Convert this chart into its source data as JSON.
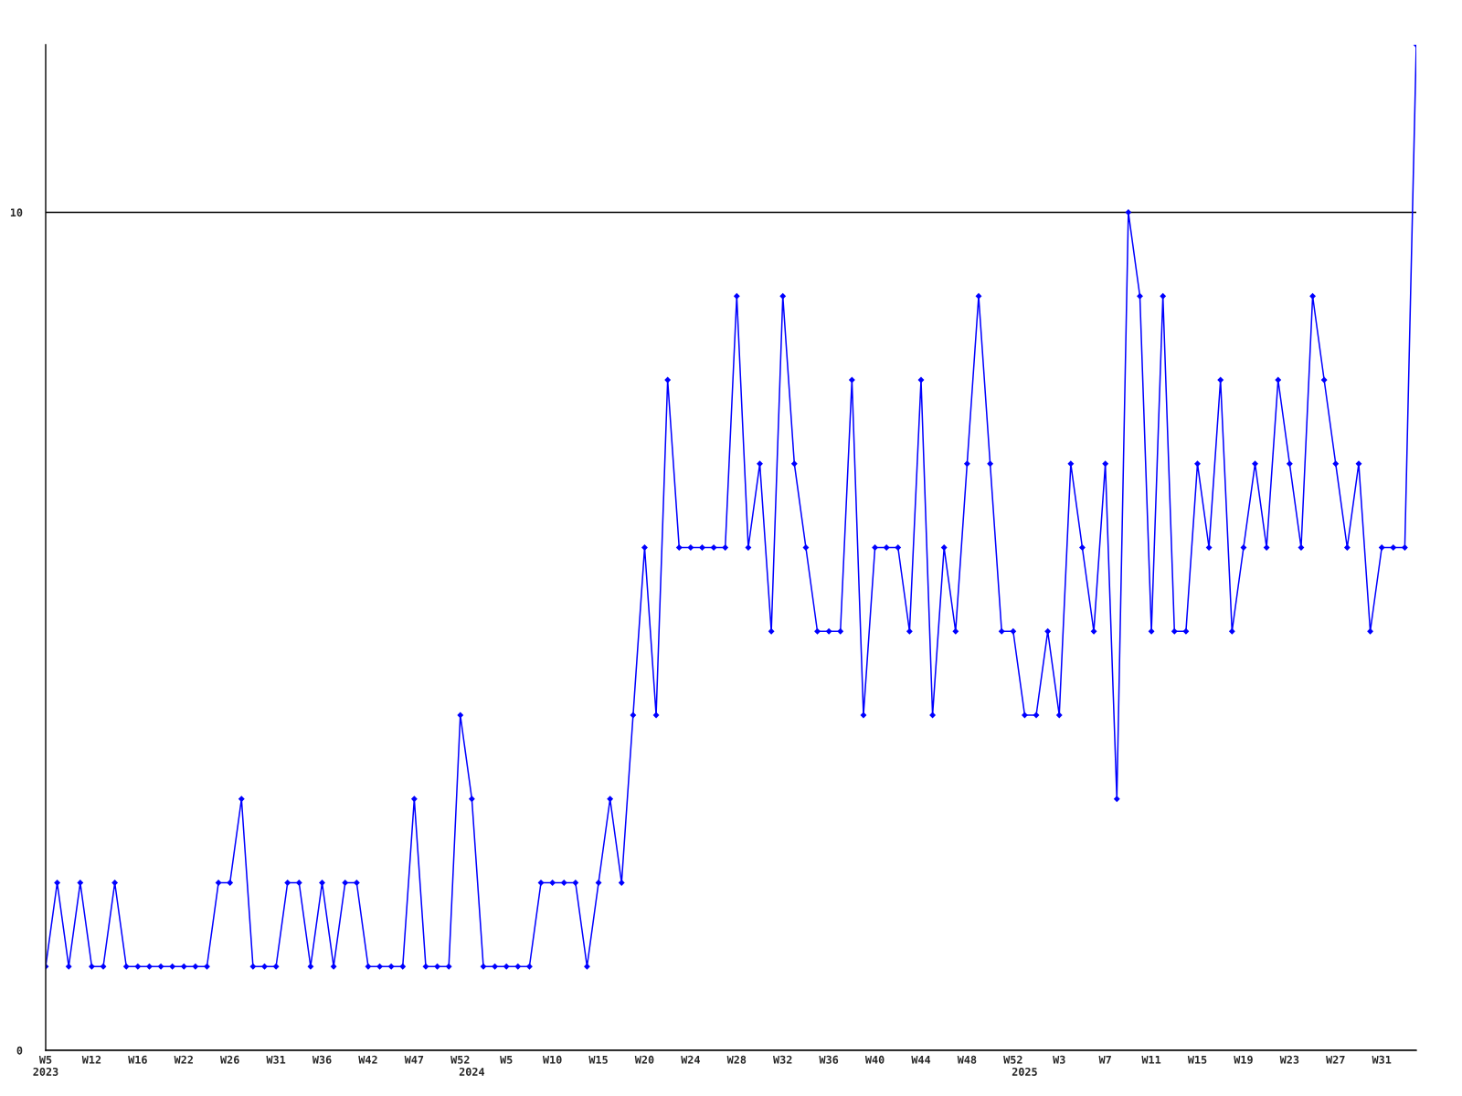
{
  "chart_data": {
    "type": "line",
    "categories": [
      "W5\n2023",
      null,
      null,
      null,
      "W12",
      null,
      null,
      null,
      "W16",
      null,
      null,
      null,
      "W22",
      null,
      null,
      null,
      "W26",
      null,
      null,
      null,
      "W31",
      null,
      null,
      null,
      "W36",
      null,
      null,
      null,
      "W42",
      null,
      null,
      null,
      "W47",
      null,
      null,
      null,
      "W52",
      "\n2024",
      null,
      null,
      "W5",
      null,
      null,
      null,
      "W10",
      null,
      null,
      null,
      "W15",
      null,
      null,
      null,
      "W20",
      null,
      null,
      null,
      "W24",
      null,
      null,
      null,
      "W28",
      null,
      null,
      null,
      "W32",
      null,
      null,
      null,
      "W36",
      null,
      null,
      null,
      "W40",
      null,
      null,
      null,
      "W44",
      null,
      null,
      null,
      "W48",
      null,
      null,
      null,
      "W52",
      "\n2025",
      null,
      null,
      "W3",
      null,
      null,
      null,
      "W7",
      null,
      null,
      null,
      "W11",
      null,
      null,
      null,
      "W15",
      null,
      null,
      null,
      "W19",
      null,
      null,
      null,
      "W23",
      null,
      null,
      null,
      "W27",
      null,
      null,
      null,
      "W31",
      null,
      null,
      null
    ],
    "series": [
      {
        "color": "#0000ff",
        "values": [
          1,
          2,
          1,
          2,
          1,
          1,
          2,
          1,
          1,
          1,
          1,
          1,
          1,
          1,
          1,
          2,
          2,
          3,
          1,
          1,
          1,
          2,
          2,
          1,
          2,
          1,
          2,
          2,
          1,
          1,
          1,
          1,
          3,
          1,
          1,
          1,
          4,
          3,
          1,
          1,
          1,
          1,
          1,
          2,
          2,
          2,
          2,
          1,
          2,
          3,
          2,
          4,
          6,
          4,
          8,
          6,
          6,
          6,
          6,
          6,
          9,
          6,
          7,
          5,
          9,
          7,
          6,
          5,
          5,
          5,
          8,
          4,
          6,
          6,
          6,
          5,
          8,
          4,
          6,
          5,
          7,
          9,
          7,
          5,
          5,
          4,
          4,
          5,
          4,
          7,
          6,
          5,
          7,
          3,
          10,
          9,
          5,
          9,
          5,
          5,
          7,
          6,
          8,
          5,
          6,
          7,
          6,
          8,
          7,
          6,
          9,
          8,
          7,
          6,
          7,
          5,
          6,
          6,
          6,
          12
        ]
      }
    ],
    "ylim": [
      0,
      12
    ],
    "yticks": [
      0,
      10
    ],
    "grid": "y",
    "marker": "diamond",
    "line_style": "solid"
  }
}
